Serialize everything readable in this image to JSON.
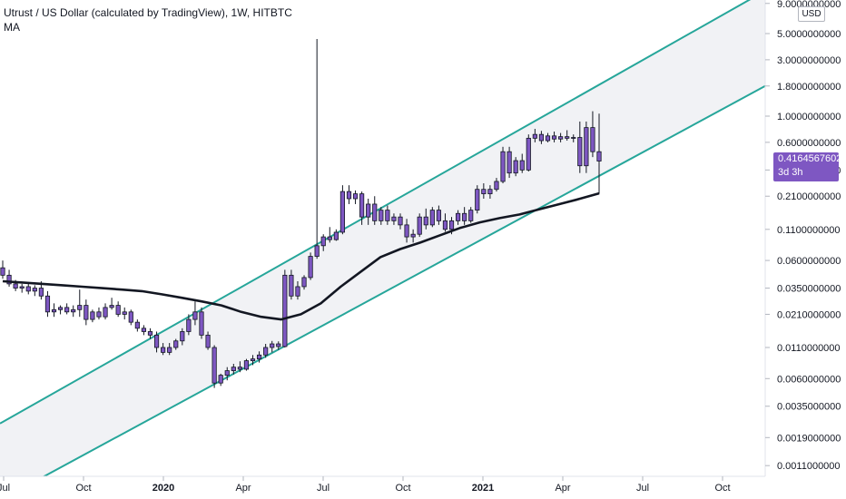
{
  "header": {
    "title": "Utrust / US Dollar (calculated by TradingView), 1W, HITBTC",
    "indicator": "MA"
  },
  "currency_label": "USD",
  "last_price": {
    "value": "0.4164567602",
    "countdown": "3d 3h"
  },
  "colors": {
    "candle_up": "#7e57c2",
    "candle_down": "#7e57c2",
    "wick": "#131722",
    "channel_line": "#26a69a",
    "channel_fill": "#eeeff2",
    "ma_line": "#131722",
    "tag_bg": "#7e57c2"
  },
  "chart_data": {
    "type": "candlestick",
    "symbol": "Utrust / US Dollar",
    "interval": "1W",
    "exchange": "HITBTC",
    "y_scale": "log",
    "y_ticks": [
      "9.0000000000",
      "5.0000000000",
      "3.0000000000",
      "1.8000000000",
      "1.0000000000",
      "0.6000000000",
      "0.3500000000",
      "0.2100000000",
      "0.1100000000",
      "0.0600000000",
      "0.0350000000",
      "0.0210000000",
      "0.0110000000",
      "0.0060000000",
      "0.0035000000",
      "0.0019000000",
      "0.0011000000"
    ],
    "x_ticks": [
      {
        "label": "Jul",
        "bold": false
      },
      {
        "label": "Oct",
        "bold": false
      },
      {
        "label": "2020",
        "bold": true
      },
      {
        "label": "Apr",
        "bold": false
      },
      {
        "label": "Jul",
        "bold": false
      },
      {
        "label": "Oct",
        "bold": false
      },
      {
        "label": "2021",
        "bold": true
      },
      {
        "label": "Apr",
        "bold": false
      },
      {
        "label": "Jul",
        "bold": false
      },
      {
        "label": "Oct",
        "bold": false
      }
    ],
    "candles": [
      {
        "o": 0.052,
        "h": 0.06,
        "l": 0.042,
        "c": 0.045
      },
      {
        "o": 0.045,
        "h": 0.05,
        "l": 0.036,
        "c": 0.038
      },
      {
        "o": 0.038,
        "h": 0.041,
        "l": 0.033,
        "c": 0.035
      },
      {
        "o": 0.035,
        "h": 0.038,
        "l": 0.032,
        "c": 0.036
      },
      {
        "o": 0.036,
        "h": 0.038,
        "l": 0.031,
        "c": 0.033
      },
      {
        "o": 0.033,
        "h": 0.037,
        "l": 0.03,
        "c": 0.035
      },
      {
        "o": 0.035,
        "h": 0.04,
        "l": 0.028,
        "c": 0.03
      },
      {
        "o": 0.03,
        "h": 0.033,
        "l": 0.02,
        "c": 0.022
      },
      {
        "o": 0.022,
        "h": 0.026,
        "l": 0.02,
        "c": 0.023
      },
      {
        "o": 0.023,
        "h": 0.025,
        "l": 0.021,
        "c": 0.024
      },
      {
        "o": 0.024,
        "h": 0.026,
        "l": 0.021,
        "c": 0.022
      },
      {
        "o": 0.022,
        "h": 0.025,
        "l": 0.02,
        "c": 0.023
      },
      {
        "o": 0.023,
        "h": 0.034,
        "l": 0.02,
        "c": 0.025
      },
      {
        "o": 0.025,
        "h": 0.028,
        "l": 0.017,
        "c": 0.019
      },
      {
        "o": 0.019,
        "h": 0.023,
        "l": 0.018,
        "c": 0.022
      },
      {
        "o": 0.022,
        "h": 0.024,
        "l": 0.019,
        "c": 0.02
      },
      {
        "o": 0.02,
        "h": 0.026,
        "l": 0.019,
        "c": 0.024
      },
      {
        "o": 0.024,
        "h": 0.029,
        "l": 0.023,
        "c": 0.025
      },
      {
        "o": 0.025,
        "h": 0.027,
        "l": 0.02,
        "c": 0.021
      },
      {
        "o": 0.021,
        "h": 0.024,
        "l": 0.019,
        "c": 0.022
      },
      {
        "o": 0.022,
        "h": 0.023,
        "l": 0.017,
        "c": 0.018
      },
      {
        "o": 0.018,
        "h": 0.019,
        "l": 0.015,
        "c": 0.016
      },
      {
        "o": 0.016,
        "h": 0.017,
        "l": 0.014,
        "c": 0.015
      },
      {
        "o": 0.015,
        "h": 0.016,
        "l": 0.013,
        "c": 0.014
      },
      {
        "o": 0.014,
        "h": 0.015,
        "l": 0.01,
        "c": 0.011
      },
      {
        "o": 0.011,
        "h": 0.012,
        "l": 0.0095,
        "c": 0.01
      },
      {
        "o": 0.01,
        "h": 0.012,
        "l": 0.0095,
        "c": 0.011
      },
      {
        "o": 0.011,
        "h": 0.013,
        "l": 0.0105,
        "c": 0.0125
      },
      {
        "o": 0.0125,
        "h": 0.016,
        "l": 0.0115,
        "c": 0.015
      },
      {
        "o": 0.015,
        "h": 0.021,
        "l": 0.014,
        "c": 0.019
      },
      {
        "o": 0.019,
        "h": 0.027,
        "l": 0.017,
        "c": 0.022
      },
      {
        "o": 0.022,
        "h": 0.024,
        "l": 0.013,
        "c": 0.014
      },
      {
        "o": 0.014,
        "h": 0.015,
        "l": 0.0105,
        "c": 0.011
      },
      {
        "o": 0.011,
        "h": 0.0115,
        "l": 0.005,
        "c": 0.0055
      },
      {
        "o": 0.0055,
        "h": 0.0066,
        "l": 0.0052,
        "c": 0.0064
      },
      {
        "o": 0.0064,
        "h": 0.0075,
        "l": 0.0058,
        "c": 0.007
      },
      {
        "o": 0.007,
        "h": 0.008,
        "l": 0.0065,
        "c": 0.0075
      },
      {
        "o": 0.0075,
        "h": 0.0084,
        "l": 0.0068,
        "c": 0.0072
      },
      {
        "o": 0.0072,
        "h": 0.0088,
        "l": 0.007,
        "c": 0.0085
      },
      {
        "o": 0.0085,
        "h": 0.0095,
        "l": 0.0078,
        "c": 0.0088
      },
      {
        "o": 0.0088,
        "h": 0.0102,
        "l": 0.0082,
        "c": 0.0095
      },
      {
        "o": 0.0095,
        "h": 0.0118,
        "l": 0.009,
        "c": 0.011
      },
      {
        "o": 0.011,
        "h": 0.0125,
        "l": 0.01,
        "c": 0.0118
      },
      {
        "o": 0.0118,
        "h": 0.0124,
        "l": 0.0105,
        "c": 0.0112
      },
      {
        "o": 0.0112,
        "h": 0.05,
        "l": 0.011,
        "c": 0.045
      },
      {
        "o": 0.045,
        "h": 0.05,
        "l": 0.028,
        "c": 0.03
      },
      {
        "o": 0.03,
        "h": 0.04,
        "l": 0.028,
        "c": 0.036
      },
      {
        "o": 0.036,
        "h": 0.045,
        "l": 0.034,
        "c": 0.043
      },
      {
        "o": 0.043,
        "h": 0.07,
        "l": 0.041,
        "c": 0.065
      },
      {
        "o": 0.065,
        "h": 4.5,
        "l": 0.062,
        "c": 0.08
      },
      {
        "o": 0.08,
        "h": 0.1,
        "l": 0.072,
        "c": 0.095
      },
      {
        "o": 0.095,
        "h": 0.115,
        "l": 0.085,
        "c": 0.09
      },
      {
        "o": 0.09,
        "h": 0.11,
        "l": 0.088,
        "c": 0.104
      },
      {
        "o": 0.104,
        "h": 0.26,
        "l": 0.1,
        "c": 0.23
      },
      {
        "o": 0.23,
        "h": 0.26,
        "l": 0.18,
        "c": 0.2
      },
      {
        "o": 0.2,
        "h": 0.235,
        "l": 0.18,
        "c": 0.22
      },
      {
        "o": 0.22,
        "h": 0.23,
        "l": 0.12,
        "c": 0.14
      },
      {
        "o": 0.14,
        "h": 0.2,
        "l": 0.12,
        "c": 0.18
      },
      {
        "o": 0.18,
        "h": 0.21,
        "l": 0.12,
        "c": 0.13
      },
      {
        "o": 0.13,
        "h": 0.17,
        "l": 0.12,
        "c": 0.16
      },
      {
        "o": 0.16,
        "h": 0.175,
        "l": 0.12,
        "c": 0.13
      },
      {
        "o": 0.13,
        "h": 0.15,
        "l": 0.12,
        "c": 0.14
      },
      {
        "o": 0.14,
        "h": 0.15,
        "l": 0.11,
        "c": 0.12
      },
      {
        "o": 0.12,
        "h": 0.135,
        "l": 0.085,
        "c": 0.095
      },
      {
        "o": 0.095,
        "h": 0.11,
        "l": 0.085,
        "c": 0.1
      },
      {
        "o": 0.1,
        "h": 0.15,
        "l": 0.095,
        "c": 0.14
      },
      {
        "o": 0.14,
        "h": 0.165,
        "l": 0.11,
        "c": 0.12
      },
      {
        "o": 0.12,
        "h": 0.17,
        "l": 0.115,
        "c": 0.16
      },
      {
        "o": 0.16,
        "h": 0.175,
        "l": 0.12,
        "c": 0.13
      },
      {
        "o": 0.13,
        "h": 0.15,
        "l": 0.105,
        "c": 0.11
      },
      {
        "o": 0.11,
        "h": 0.14,
        "l": 0.1,
        "c": 0.13
      },
      {
        "o": 0.13,
        "h": 0.16,
        "l": 0.12,
        "c": 0.15
      },
      {
        "o": 0.15,
        "h": 0.17,
        "l": 0.12,
        "c": 0.13
      },
      {
        "o": 0.13,
        "h": 0.17,
        "l": 0.125,
        "c": 0.16
      },
      {
        "o": 0.16,
        "h": 0.26,
        "l": 0.15,
        "c": 0.24
      },
      {
        "o": 0.24,
        "h": 0.27,
        "l": 0.2,
        "c": 0.22
      },
      {
        "o": 0.22,
        "h": 0.26,
        "l": 0.2,
        "c": 0.24
      },
      {
        "o": 0.24,
        "h": 0.3,
        "l": 0.23,
        "c": 0.28
      },
      {
        "o": 0.28,
        "h": 0.55,
        "l": 0.27,
        "c": 0.5
      },
      {
        "o": 0.5,
        "h": 0.55,
        "l": 0.3,
        "c": 0.33
      },
      {
        "o": 0.33,
        "h": 0.45,
        "l": 0.31,
        "c": 0.42
      },
      {
        "o": 0.42,
        "h": 0.48,
        "l": 0.33,
        "c": 0.35
      },
      {
        "o": 0.35,
        "h": 0.7,
        "l": 0.34,
        "c": 0.65
      },
      {
        "o": 0.65,
        "h": 0.78,
        "l": 0.6,
        "c": 0.7
      },
      {
        "o": 0.7,
        "h": 0.75,
        "l": 0.58,
        "c": 0.62
      },
      {
        "o": 0.62,
        "h": 0.72,
        "l": 0.6,
        "c": 0.68
      },
      {
        "o": 0.68,
        "h": 0.74,
        "l": 0.6,
        "c": 0.64
      },
      {
        "o": 0.64,
        "h": 0.72,
        "l": 0.6,
        "c": 0.67
      },
      {
        "o": 0.67,
        "h": 0.76,
        "l": 0.62,
        "c": 0.65
      },
      {
        "o": 0.65,
        "h": 0.7,
        "l": 0.6,
        "c": 0.66
      },
      {
        "o": 0.66,
        "h": 0.9,
        "l": 0.33,
        "c": 0.38
      },
      {
        "o": 0.38,
        "h": 0.9,
        "l": 0.33,
        "c": 0.8
      },
      {
        "o": 0.8,
        "h": 1.1,
        "l": 0.45,
        "c": 0.5
      },
      {
        "o": 0.5,
        "h": 1.05,
        "l": 0.22,
        "c": 0.4165
      }
    ],
    "moving_average": [
      0.04,
      0.039,
      0.038,
      0.037,
      0.036,
      0.035,
      0.034,
      0.033,
      0.031,
      0.029,
      0.027,
      0.025,
      0.022,
      0.02,
      0.019,
      0.021,
      0.026,
      0.036,
      0.048,
      0.064,
      0.075,
      0.085,
      0.098,
      0.113,
      0.126,
      0.137,
      0.147,
      0.163,
      0.18,
      0.199,
      0.222
    ],
    "channel": {
      "upper": [
        {
          "x": 0,
          "y": 0.0025
        },
        {
          "x": 1,
          "y": 11.5
        }
      ],
      "lower": [
        {
          "x": 0,
          "y": 0.00056
        },
        {
          "x": 1,
          "y": 1.8
        }
      ]
    }
  }
}
